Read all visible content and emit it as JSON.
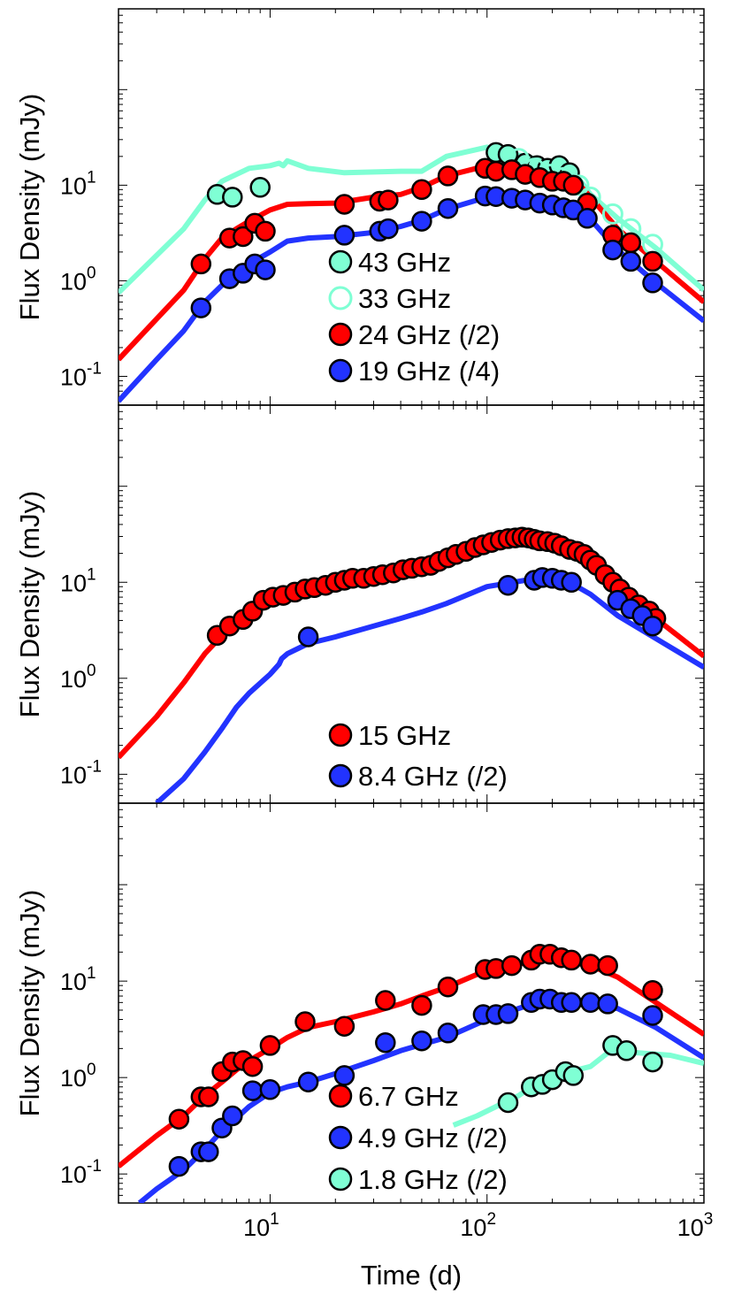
{
  "chart_data": [
    {
      "type": "scatter",
      "panel": "top",
      "xscale": "log",
      "yscale": "log",
      "xlim": [
        2,
        1000
      ],
      "ylim": [
        0.05,
        700
      ],
      "ylabel": "Flux Density  (mJy)",
      "yticks": [
        {
          "v": 0.1,
          "base": "10",
          "exp": "-1"
        },
        {
          "v": 1,
          "base": "10",
          "exp": "0"
        },
        {
          "v": 10,
          "base": "10",
          "exp": "1"
        }
      ],
      "colors": {
        "cyan": "#7fffd4",
        "red": "#ff0000",
        "blue": "#2233ff"
      },
      "legend": [
        {
          "label": "43 GHz",
          "color": "#7fffd4",
          "filled": true
        },
        {
          "label": "33 GHz",
          "color": "#7fffd4",
          "filled": false
        },
        {
          "label": "24 GHz (/2)",
          "color": "#ff0000",
          "filled": true
        },
        {
          "label": "19 GHz (/4)",
          "color": "#2233ff",
          "filled": true
        }
      ],
      "series": [
        {
          "name": "43 GHz model",
          "kind": "line",
          "color": "#7fffd4",
          "x": [
            2,
            4,
            5,
            6,
            8,
            10,
            11,
            11.5,
            12,
            15,
            22,
            40,
            50,
            65,
            100,
            120,
            150,
            180,
            200,
            220,
            250,
            300,
            400,
            600,
            1000
          ],
          "y": [
            0.75,
            3.5,
            7,
            11,
            15,
            16,
            17,
            16,
            18,
            15,
            13.5,
            14,
            14,
            20,
            25,
            22,
            20,
            18,
            15,
            12,
            14,
            8,
            4.5,
            2.2,
            0.8
          ]
        },
        {
          "name": "43 GHz",
          "kind": "points",
          "color": "#7fffd4",
          "filled": true,
          "x": [
            5.7,
            6.7,
            9,
            110,
            125,
            150,
            170,
            190,
            215,
            240
          ],
          "y": [
            8,
            7.5,
            9.5,
            22,
            21,
            17,
            16,
            15,
            16,
            13.5
          ]
        },
        {
          "name": "33 GHz",
          "kind": "points",
          "color": "#7fffd4",
          "filled": false,
          "x": [
            140,
            165,
            195,
            225,
            265,
            300,
            380,
            460,
            580
          ],
          "y": [
            19,
            15,
            13,
            12,
            10,
            7.5,
            5,
            3.5,
            2.4
          ]
        },
        {
          "name": "24 GHz (/2) model",
          "kind": "line",
          "color": "#ff0000",
          "x": [
            2,
            3,
            4,
            5,
            6,
            7,
            8,
            10,
            12,
            15,
            20,
            30,
            40,
            50,
            65,
            100,
            150,
            200,
            250,
            300,
            400,
            600,
            1000
          ],
          "y": [
            0.15,
            0.4,
            0.8,
            1.7,
            2.8,
            3.5,
            4.2,
            5.5,
            6.3,
            6.4,
            6.5,
            7.5,
            8,
            9.5,
            12.5,
            16,
            14,
            14,
            12,
            7.5,
            3.5,
            1.6,
            0.6
          ]
        },
        {
          "name": "24 GHz (/2)",
          "kind": "points",
          "color": "#ff0000",
          "filled": true,
          "x": [
            4.8,
            6.5,
            7.5,
            8.5,
            9.5,
            22,
            32,
            35,
            50,
            66,
            98,
            110,
            130,
            150,
            175,
            200,
            225,
            250,
            290,
            380,
            460,
            580
          ],
          "y": [
            1.5,
            2.8,
            2.9,
            4,
            3.3,
            6.3,
            6.8,
            7,
            9,
            12.5,
            15,
            14,
            14.5,
            13,
            12,
            11,
            11,
            10,
            6.5,
            3,
            2.5,
            1.6
          ]
        },
        {
          "name": "19 GHz (/4) model",
          "kind": "line",
          "color": "#2233ff",
          "x": [
            2,
            3,
            4,
            5,
            6,
            7,
            8,
            10,
            12,
            15,
            20,
            30,
            40,
            50,
            65,
            100,
            150,
            200,
            250,
            300,
            400,
            600,
            1000
          ],
          "y": [
            0.055,
            0.15,
            0.3,
            0.6,
            0.9,
            1.2,
            1.5,
            2,
            2.6,
            2.8,
            2.9,
            3.2,
            3.7,
            4.3,
            5.6,
            7.5,
            7.5,
            6.8,
            6.2,
            4.4,
            2.1,
            0.95,
            0.38
          ]
        },
        {
          "name": "19 GHz (/4)",
          "kind": "points",
          "color": "#2233ff",
          "filled": true,
          "x": [
            4.8,
            6.5,
            7.5,
            8.5,
            9.5,
            22,
            32,
            35,
            50,
            66,
            98,
            110,
            130,
            150,
            175,
            200,
            225,
            250,
            290,
            380,
            460,
            580
          ],
          "y": [
            0.52,
            1.05,
            1.2,
            1.5,
            1.3,
            3,
            3.3,
            3.5,
            4.2,
            5.7,
            7.7,
            7.6,
            7.3,
            7,
            6.5,
            6.2,
            5.8,
            5.5,
            4.5,
            2.1,
            1.6,
            0.95
          ]
        }
      ]
    },
    {
      "type": "scatter",
      "panel": "middle",
      "xscale": "log",
      "yscale": "log",
      "xlim": [
        2,
        1000
      ],
      "ylim": [
        0.05,
        700
      ],
      "ylabel": "Flux Density  (mJy)",
      "yticks": [
        {
          "v": 0.1,
          "base": "10",
          "exp": "-1"
        },
        {
          "v": 1,
          "base": "10",
          "exp": "0"
        },
        {
          "v": 10,
          "base": "10",
          "exp": "1"
        }
      ],
      "legend": [
        {
          "label": "15 GHz",
          "color": "#ff0000",
          "filled": true
        },
        {
          "label": "8.4 GHz (/2)",
          "color": "#2233ff",
          "filled": true
        }
      ],
      "series": [
        {
          "name": "15 GHz model",
          "kind": "line",
          "color": "#ff0000",
          "x": [
            2,
            3,
            4,
            5,
            6,
            7,
            8,
            10,
            12,
            15,
            20,
            30,
            40,
            50,
            70,
            100,
            130,
            160,
            200,
            250,
            300,
            400,
            600,
            1000
          ],
          "y": [
            0.15,
            0.4,
            0.9,
            1.8,
            2.8,
            3.6,
            5,
            6.8,
            7.6,
            8.3,
            9.5,
            11,
            12.5,
            14,
            19,
            26,
            28,
            27,
            23,
            20,
            16,
            9,
            4.2,
            1.7
          ]
        },
        {
          "name": "15 GHz",
          "kind": "points",
          "color": "#ff0000",
          "filled": true,
          "x": [
            5.7,
            6.5,
            7.5,
            8.3,
            9.3,
            10.3,
            11.5,
            13,
            14.5,
            16,
            18,
            20,
            22,
            24,
            27,
            30,
            33,
            37,
            41,
            45,
            50,
            55,
            60,
            66,
            72,
            80,
            88,
            96,
            105,
            115,
            125,
            135,
            145,
            155,
            165,
            175,
            190,
            205,
            220,
            240,
            260,
            280,
            300,
            320,
            350,
            380,
            410,
            450,
            500,
            560,
            600
          ],
          "y": [
            2.8,
            3.5,
            4.1,
            5,
            6.5,
            7,
            7.3,
            7.9,
            8.5,
            8.8,
            9.3,
            10,
            10.5,
            11,
            11,
            11.5,
            12,
            12.5,
            13.5,
            14,
            14.5,
            15,
            16.5,
            18,
            19.5,
            21,
            23,
            24.5,
            26,
            27.5,
            28.5,
            29,
            29.5,
            29,
            28,
            27,
            26.5,
            25.5,
            24,
            22,
            21,
            19.5,
            17,
            15,
            12,
            10,
            8.5,
            7,
            5.8,
            5,
            4.2
          ]
        },
        {
          "name": "8.4 GHz (/2) model",
          "kind": "line",
          "color": "#2233ff",
          "x": [
            3,
            4,
            5,
            6,
            7,
            8,
            10,
            11,
            11.3,
            12,
            15,
            20,
            30,
            40,
            50,
            65,
            100,
            150,
            200,
            250,
            300,
            400,
            600,
            1000
          ],
          "y": [
            0.05,
            0.09,
            0.17,
            0.3,
            0.5,
            0.7,
            1.1,
            1.4,
            1.6,
            1.8,
            2.3,
            2.7,
            3.5,
            4.2,
            4.9,
            6,
            9,
            10.5,
            10.5,
            9.5,
            7.5,
            4.5,
            2.6,
            1.3
          ]
        },
        {
          "name": "8.4 GHz (/2)",
          "kind": "points",
          "color": "#2233ff",
          "filled": true,
          "x": [
            15,
            125,
            165,
            180,
            200,
            220,
            245,
            400,
            460,
            520,
            580
          ],
          "y": [
            2.7,
            9.3,
            10.5,
            11.2,
            11,
            10.5,
            10,
            6.5,
            5.3,
            4.5,
            3.5
          ]
        }
      ]
    },
    {
      "type": "scatter",
      "panel": "bottom",
      "xscale": "log",
      "yscale": "log",
      "xlim": [
        2,
        1000
      ],
      "ylim": [
        0.05,
        700
      ],
      "xlabel": "Time  (d)",
      "ylabel": "Flux Density  (mJy)",
      "xticks": [
        {
          "v": 10,
          "base": "10",
          "exp": "1"
        },
        {
          "v": 100,
          "base": "10",
          "exp": "2"
        },
        {
          "v": 1000,
          "base": "10",
          "exp": "3"
        }
      ],
      "yticks": [
        {
          "v": 0.1,
          "base": "10",
          "exp": "-1"
        },
        {
          "v": 1,
          "base": "10",
          "exp": "0"
        },
        {
          "v": 10,
          "base": "10",
          "exp": "1"
        }
      ],
      "legend": [
        {
          "label": "6.7 GHz",
          "color": "#ff0000",
          "filled": true
        },
        {
          "label": "4.9 GHz (/2)",
          "color": "#2233ff",
          "filled": true
        },
        {
          "label": "1.8 GHz (/2)",
          "color": "#7fffd4",
          "filled": true
        }
      ],
      "series": [
        {
          "name": "6.7 GHz model",
          "kind": "line",
          "color": "#ff0000",
          "x": [
            2,
            3,
            4,
            5,
            6,
            7,
            8,
            10,
            12,
            15,
            20,
            30,
            40,
            50,
            65,
            100,
            150,
            180,
            200,
            250,
            300,
            400,
            600,
            1000
          ],
          "y": [
            0.12,
            0.25,
            0.4,
            0.65,
            0.9,
            1.2,
            1.5,
            2,
            2.6,
            3.3,
            3.8,
            4.8,
            5.8,
            7,
            8.6,
            13,
            15.5,
            18,
            17,
            15.5,
            14.5,
            11,
            6,
            2.8
          ]
        },
        {
          "name": "6.7 GHz",
          "kind": "points",
          "color": "#ff0000",
          "filled": true,
          "x": [
            3.8,
            4.8,
            5.2,
            6,
            6.7,
            7.5,
            8.3,
            10,
            14.5,
            22,
            34,
            50,
            66,
            98,
            110,
            130,
            160,
            175,
            195,
            220,
            245,
            300,
            360,
            580
          ],
          "y": [
            0.37,
            0.63,
            0.63,
            1.15,
            1.45,
            1.5,
            1.3,
            2.15,
            3.8,
            3.4,
            6.3,
            5.6,
            8.7,
            13.2,
            13.5,
            14.5,
            16.5,
            19,
            19,
            17.5,
            16.5,
            15,
            14.5,
            8
          ]
        },
        {
          "name": "4.9 GHz (/2) model",
          "kind": "line",
          "color": "#2233ff",
          "x": [
            2.5,
            3,
            4,
            5,
            6,
            7,
            8,
            10,
            12,
            15,
            20,
            30,
            40,
            50,
            65,
            100,
            150,
            200,
            250,
            300,
            400,
            600,
            1000
          ],
          "y": [
            0.05,
            0.07,
            0.11,
            0.18,
            0.28,
            0.38,
            0.5,
            0.7,
            0.8,
            0.9,
            1.1,
            1.5,
            1.9,
            2.2,
            2.6,
            4,
            5.5,
            6.3,
            6,
            5.7,
            5.2,
            3.3,
            1.6
          ]
        },
        {
          "name": "4.9 GHz (/2)",
          "kind": "points",
          "color": "#2233ff",
          "filled": true,
          "x": [
            3.8,
            4.8,
            5.2,
            6,
            6.7,
            8.3,
            10,
            15,
            22,
            34,
            50,
            66,
            96,
            110,
            125,
            160,
            175,
            195,
            220,
            245,
            300,
            360,
            580
          ],
          "y": [
            0.12,
            0.17,
            0.17,
            0.3,
            0.4,
            0.73,
            0.75,
            0.9,
            1.05,
            2.3,
            2.4,
            2.9,
            4.5,
            4.5,
            4.6,
            6,
            6.5,
            6.5,
            6,
            6,
            6,
            5.8,
            4.4
          ]
        },
        {
          "name": "1.8 GHz (/2) model",
          "kind": "line",
          "color": "#7fffd4",
          "x": [
            70,
            90,
            100,
            120,
            140,
            160,
            180,
            200,
            230,
            260,
            300,
            360,
            400,
            500,
            700,
            1000
          ],
          "y": [
            0.32,
            0.4,
            0.45,
            0.55,
            0.65,
            0.8,
            1.0,
            0.85,
            1.05,
            1.2,
            1.3,
            1.8,
            1.85,
            1.8,
            1.7,
            1.4
          ]
        },
        {
          "name": "1.8 GHz (/2)",
          "kind": "points",
          "color": "#7fffd4",
          "filled": true,
          "x": [
            125,
            160,
            180,
            200,
            230,
            250,
            380,
            440,
            580
          ],
          "y": [
            0.55,
            0.8,
            0.85,
            0.95,
            1.15,
            1.05,
            2.15,
            1.9,
            1.45
          ]
        }
      ]
    }
  ]
}
